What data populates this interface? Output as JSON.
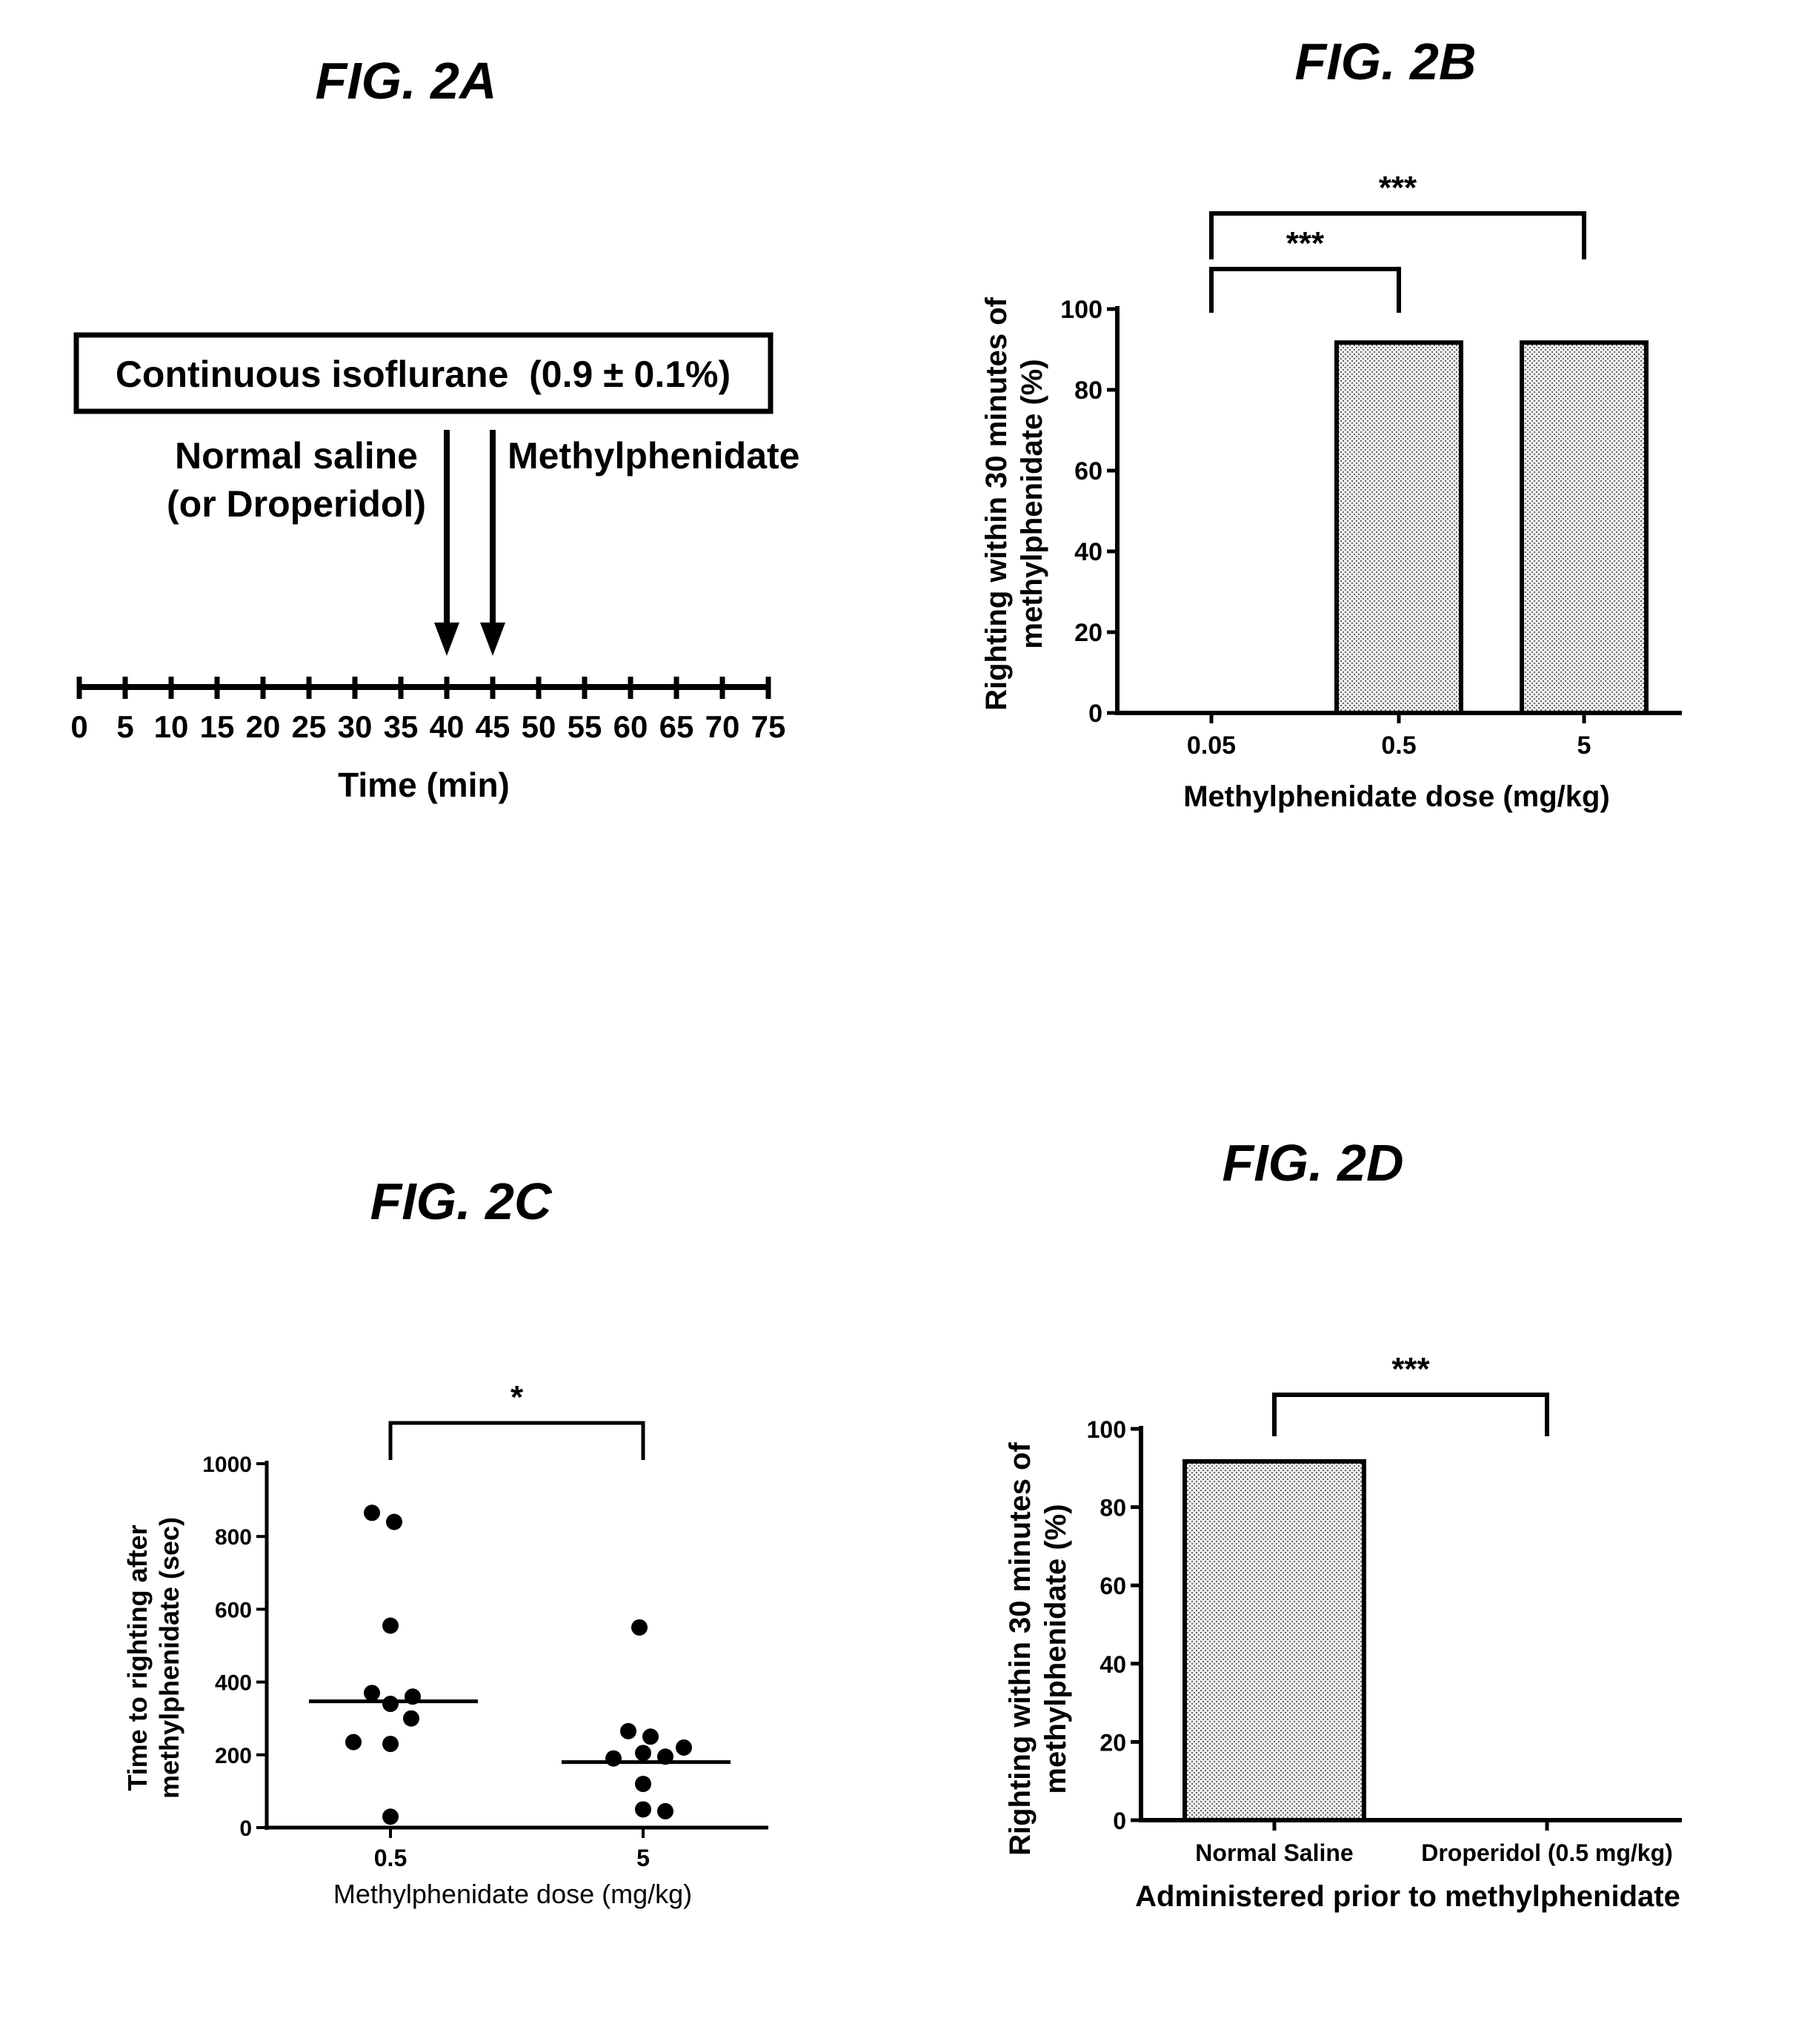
{
  "chart_data": [
    {
      "panel_id": "2A",
      "type": "diagram",
      "title": "FIG. 2A",
      "box_label": "Continuous isoflurane  (0.9 ± 0.1%)",
      "arrow1_label_line1": "Normal saline",
      "arrow1_label_line2": "(or Droperidol)",
      "arrow2_label": "Methylphenidate",
      "arrows_at_min": [
        40,
        45
      ],
      "xlabel": "Time (min)",
      "xticks": [
        0,
        5,
        10,
        15,
        20,
        25,
        30,
        35,
        40,
        45,
        50,
        55,
        60,
        65,
        70,
        75
      ],
      "xlim": [
        0,
        75
      ]
    },
    {
      "panel_id": "2B",
      "type": "bar",
      "title": "FIG. 2B",
      "categories": [
        "0.05",
        "0.5",
        "5"
      ],
      "values": [
        0,
        91.7,
        91.7
      ],
      "xlabel": "Methylphenidate dose (mg/kg)",
      "ylabel_line1": "Righting within 30 minutes of",
      "ylabel_line2": "methylphenidate (%)",
      "ylim": [
        0,
        100
      ],
      "yticks": [
        "0",
        "20",
        "40",
        "60",
        "80",
        "100"
      ],
      "significance": [
        {
          "from": 0,
          "to": 1,
          "label": "***"
        },
        {
          "from": 0,
          "to": 2,
          "label": "***"
        }
      ]
    },
    {
      "panel_id": "2C",
      "type": "scatter",
      "title": "FIG. 2C",
      "categories": [
        "0.5",
        "5"
      ],
      "series": [
        {
          "category": "0.5",
          "values": [
            865,
            840,
            555,
            370,
            360,
            340,
            300,
            235,
            230,
            30
          ],
          "median": 347
        },
        {
          "category": "5",
          "values": [
            550,
            265,
            250,
            220,
            205,
            195,
            190,
            120,
            50,
            45
          ],
          "median": 180
        }
      ],
      "xlabel": "Methylphenidate dose (mg/kg)",
      "ylabel_line1": "Time to righting after",
      "ylabel_line2": "methylphenidate (sec)",
      "ylim": [
        0,
        1000
      ],
      "yticks": [
        "0",
        "200",
        "400",
        "600",
        "800",
        "1000"
      ],
      "significance": [
        {
          "from": 0,
          "to": 1,
          "label": "*"
        }
      ]
    },
    {
      "panel_id": "2D",
      "type": "bar",
      "title": "FIG. 2D",
      "categories": [
        "Normal Saline",
        "Droperidol (0.5 mg/kg)"
      ],
      "values": [
        91.7,
        0
      ],
      "xlabel": "Administered prior to methylphenidate",
      "ylabel_line1": "Righting within 30 minutes of",
      "ylabel_line2": "methylphenidate (%)",
      "ylim": [
        0,
        100
      ],
      "yticks": [
        "0",
        "20",
        "40",
        "60",
        "80",
        "100"
      ],
      "significance": [
        {
          "from": 0,
          "to": 1,
          "label": "***"
        }
      ]
    }
  ]
}
